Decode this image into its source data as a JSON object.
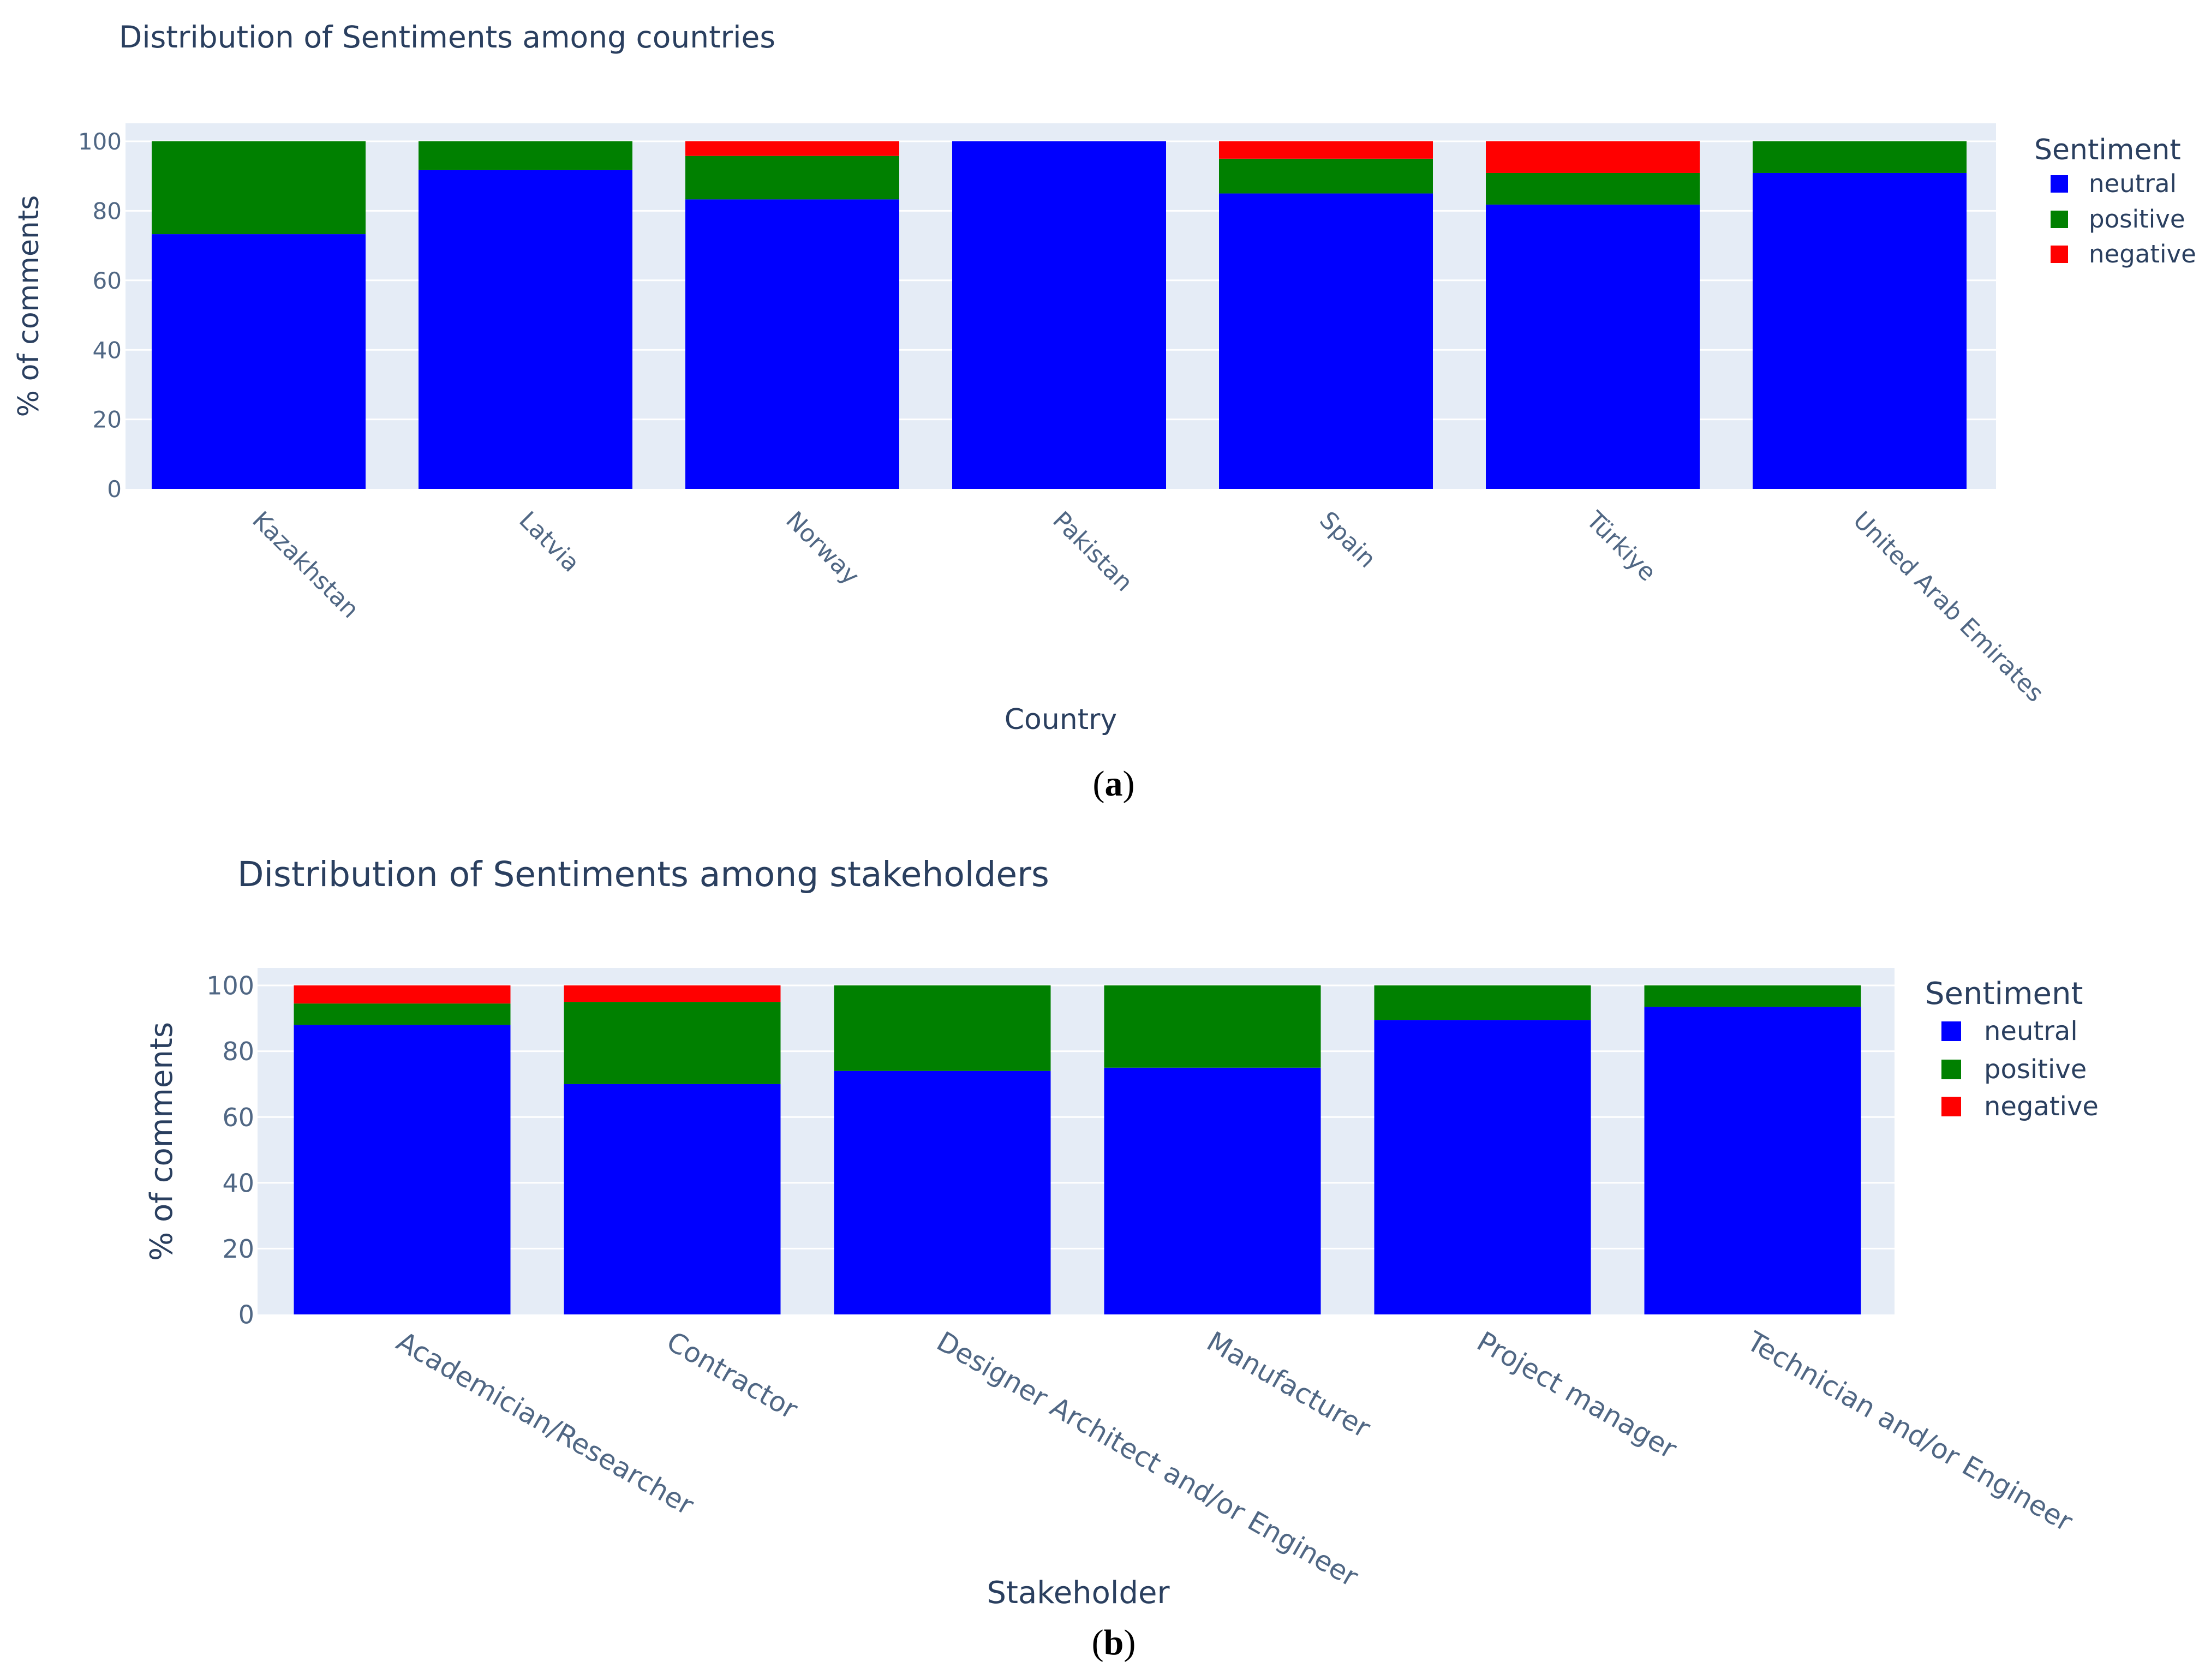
{
  "colors": {
    "neutral": "#0000ff",
    "positive": "#008000",
    "negative": "#ff0000",
    "plot_bg": "#e5ecf6",
    "grid": "#ffffff"
  },
  "chart_data": [
    {
      "type": "bar",
      "stacked": true,
      "caption_pre": "(",
      "caption_letter": "a",
      "caption_post": ")",
      "title": "Distribution of Sentiments among countries",
      "xlabel": "Country",
      "ylabel": "% of comments",
      "ylim": [
        0,
        100
      ],
      "yticks": [
        "0",
        "20",
        "40",
        "60",
        "80",
        "100"
      ],
      "legend_title": "Sentiment",
      "legend_position": "top-right",
      "categories": [
        "Kazakhstan",
        "Latvia",
        "Norway",
        "Pakistan",
        "Spain",
        "Türkiye",
        "United Arab Emirates"
      ],
      "series": [
        {
          "name": "neutral",
          "values": [
            73.3,
            91.7,
            83.3,
            100,
            85,
            81.8,
            90.9
          ]
        },
        {
          "name": "positive",
          "values": [
            26.7,
            8.3,
            12.5,
            0,
            10,
            9.1,
            9.1
          ]
        },
        {
          "name": "negative",
          "values": [
            0,
            0,
            4.2,
            0,
            5,
            9.1,
            0
          ]
        }
      ]
    },
    {
      "type": "bar",
      "stacked": true,
      "caption_pre": "(",
      "caption_letter": "b",
      "caption_post": ")",
      "title": "Distribution of Sentiments among stakeholders",
      "xlabel": "Stakeholder",
      "ylabel": "% of comments",
      "ylim": [
        0,
        100
      ],
      "yticks": [
        "0",
        "20",
        "40",
        "60",
        "80",
        "100"
      ],
      "legend_title": "Sentiment",
      "legend_position": "top-right",
      "categories": [
        "Academician/Researcher",
        "Contractor",
        "Designer Architect and/or Engineer",
        "Manufacturer",
        "Project manager",
        "Technician and/or Engineer"
      ],
      "series": [
        {
          "name": "neutral",
          "values": [
            88,
            70,
            74,
            75,
            89.5,
            93.5
          ]
        },
        {
          "name": "positive",
          "values": [
            6.5,
            25,
            26,
            25,
            10.5,
            6.5
          ]
        },
        {
          "name": "negative",
          "values": [
            5.5,
            5,
            0,
            0,
            0,
            0
          ]
        }
      ]
    }
  ]
}
